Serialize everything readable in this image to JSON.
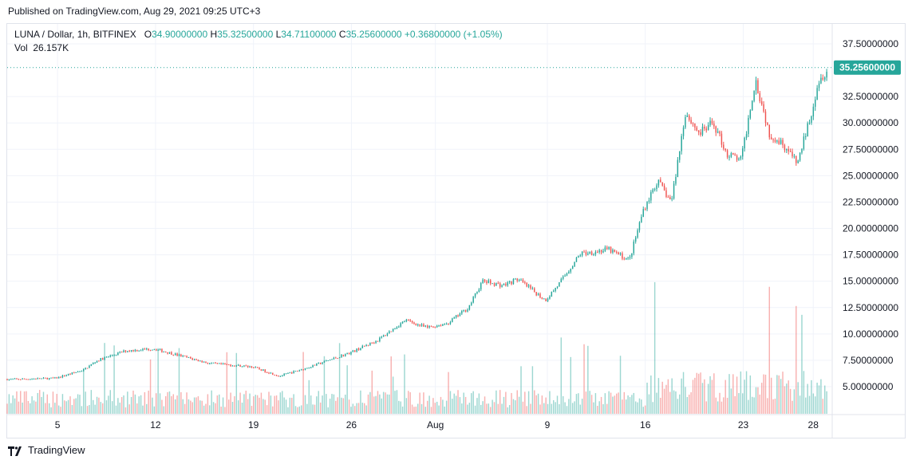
{
  "header": {
    "published": "Published on TradingView.com, Aug 29, 2021 09:25 UTC+3"
  },
  "legend": {
    "symbol": "LUNA / Dollar, 1h, BITFINEX",
    "o_label": "O",
    "o_value": "34.90000000",
    "h_label": "H",
    "h_value": "35.32500000",
    "l_label": "L",
    "l_value": "34.71100000",
    "c_label": "C",
    "c_value": "35.25600000",
    "change": "+0.36800000 (+1.05%)",
    "vol_label": "Vol",
    "vol_value": "26.157K"
  },
  "footer": {
    "brand": "TradingView"
  },
  "colors": {
    "up": "#26a69a",
    "down": "#ef5350",
    "price_badge": "#26a69a",
    "grid": "#f0f3fa"
  },
  "chart_data": {
    "type": "candlestick",
    "interval": "1h",
    "ylim": [
      3.0,
      38.5
    ],
    "y_ticks": [
      "37.50000000",
      "32.50000000",
      "30.00000000",
      "27.50000000",
      "25.00000000",
      "22.50000000",
      "20.00000000",
      "17.50000000",
      "15.00000000",
      "12.50000000",
      "10.00000000",
      "7.50000000",
      "5.00000000"
    ],
    "y_tick_values": [
      37.5,
      32.5,
      30,
      27.5,
      25,
      22.5,
      20,
      17.5,
      15,
      12.5,
      10,
      7.5,
      5
    ],
    "x_ticks": [
      {
        "label": "5",
        "day": 0
      },
      {
        "label": "12",
        "day": 7
      },
      {
        "label": "19",
        "day": 14
      },
      {
        "label": "26",
        "day": 21
      },
      {
        "label": "Aug",
        "day": 27
      },
      {
        "label": "9",
        "day": 35
      },
      {
        "label": "16",
        "day": 42
      },
      {
        "label": "23",
        "day": 49
      },
      {
        "label": "28",
        "day": 54
      }
    ],
    "last_price": 35.256,
    "last_price_label": "35.25600000",
    "price_path": {
      "day": [
        -3,
        0,
        2,
        3,
        5,
        7,
        9,
        11,
        14,
        16,
        18,
        21,
        23,
        25,
        26.5,
        28,
        29.5,
        30.5,
        32,
        33,
        35,
        36,
        37.5,
        39.5,
        41,
        42,
        43,
        44,
        45,
        46,
        47,
        48,
        49,
        50,
        51,
        52,
        53,
        54,
        54.5,
        55.2
      ],
      "price": [
        5.7,
        5.8,
        6.6,
        7.5,
        8.4,
        8.6,
        7.9,
        7.2,
        6.9,
        6.0,
        6.8,
        8.2,
        9.4,
        11.3,
        10.6,
        11.0,
        12.5,
        15.0,
        14.6,
        15.2,
        13.2,
        14.8,
        17.6,
        18.0,
        17.0,
        21.8,
        24.5,
        22.5,
        31.0,
        29.0,
        30.0,
        27.0,
        26.5,
        34.2,
        29.0,
        28.0,
        26.1,
        31.0,
        34.0,
        35.25
      ]
    }
  }
}
